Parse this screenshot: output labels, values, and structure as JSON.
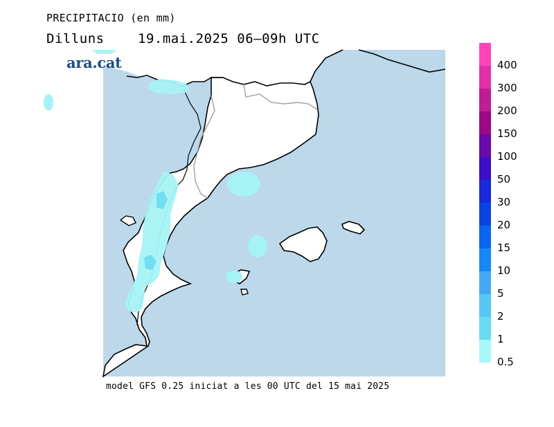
{
  "header": {
    "title": "PRECIPITACIO (en mm)",
    "day": "Dilluns",
    "datetime": "19.mai.2025 06–09h UTC"
  },
  "logo": {
    "text": "ara.cat"
  },
  "footer": {
    "model_text": "model GFS 0.25 iniciat a les 00 UTC del 15 mai 2025"
  },
  "colors": {
    "sea": "#bcd8ea",
    "land": "#ffffff",
    "coast": "#000000",
    "borders": "#a0a0a0",
    "precip_light": "#a6f3f5"
  },
  "legend": {
    "unit": "mm",
    "items": [
      {
        "label": "400",
        "color": "#ff44bb"
      },
      {
        "label": "300",
        "color": "#e030a8"
      },
      {
        "label": "200",
        "color": "#c01c95"
      },
      {
        "label": "150",
        "color": "#9a0a85"
      },
      {
        "label": "100",
        "color": "#6a0aa8"
      },
      {
        "label": "50",
        "color": "#3c0ec8"
      },
      {
        "label": "30",
        "color": "#1a2ad8"
      },
      {
        "label": "20",
        "color": "#0a44e0"
      },
      {
        "label": "15",
        "color": "#0a66ee"
      },
      {
        "label": "10",
        "color": "#1688f4"
      },
      {
        "label": "5",
        "color": "#44a8f4"
      },
      {
        "label": "2",
        "color": "#55c8f4"
      },
      {
        "label": "1",
        "color": "#6adcf2"
      },
      {
        "label": "0.5",
        "color": "#a8f8fa"
      }
    ]
  }
}
